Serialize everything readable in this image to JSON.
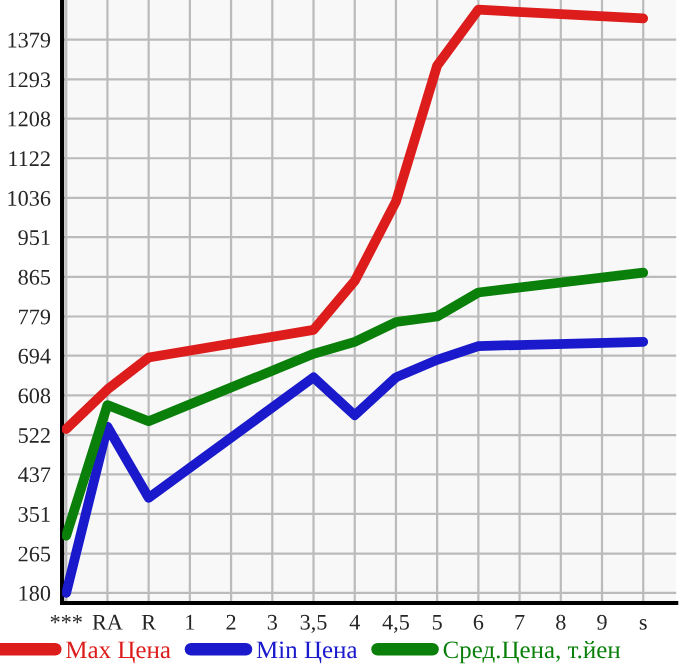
{
  "chart_data": {
    "type": "line",
    "categories": [
      "***",
      "RA",
      "R",
      "1",
      "2",
      "3",
      "3,5",
      "4",
      "4,5",
      "5",
      "6",
      "7",
      "8",
      "9",
      "s"
    ],
    "series": [
      {
        "name": "Max Цена",
        "color": "#dd1c1c",
        "values": [
          535,
          621,
          690,
          null,
          null,
          null,
          750,
          856,
          1028,
          1323,
          1444,
          null,
          null,
          null,
          1425
        ]
      },
      {
        "name": "Min Цена",
        "color": "#1a1acc",
        "values": [
          180,
          540,
          386,
          null,
          null,
          null,
          647,
          565,
          647,
          685,
          715,
          null,
          null,
          null,
          724
        ]
      },
      {
        "name": "Сред.Цена, т.йен",
        "color": "#0a800a",
        "values": [
          304,
          587,
          552,
          null,
          null,
          null,
          698,
          724,
          767,
          779,
          831,
          null,
          null,
          null,
          874
        ]
      }
    ],
    "ylim": [
      158,
      1465
    ],
    "yticks": [
      180,
      265,
      351,
      437,
      522,
      608,
      694,
      779,
      865,
      951,
      1036,
      1122,
      1208,
      1293,
      1379
    ],
    "grid": true,
    "legend": "bottom",
    "marker": "none",
    "line_style": "solid"
  }
}
